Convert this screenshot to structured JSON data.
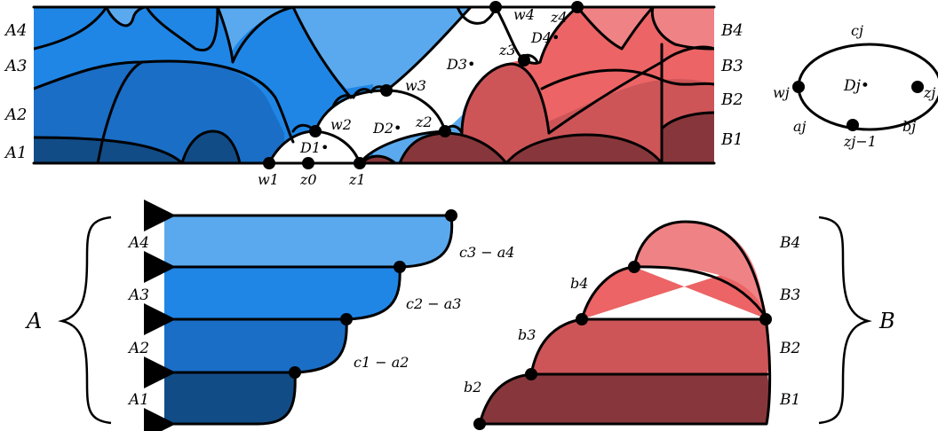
{
  "colors": {
    "A1": "#124c86",
    "A2": "#1a6ec6",
    "A3": "#1f86e6",
    "A4": "#5aa9ee",
    "B1": "#87373b",
    "B2": "#cd5558",
    "B3": "#ec6465",
    "B4": "#ef8285"
  },
  "strip": {
    "left_labels": [
      "A4",
      "A3",
      "A2",
      "A1"
    ],
    "right_labels": [
      "B4",
      "B3",
      "B2",
      "B1"
    ],
    "point_labels": {
      "w1": "w1",
      "z0": "z0",
      "z1": "z1",
      "w2": "w2",
      "z2": "z2",
      "w3": "w3",
      "z3": "z3",
      "w4": "w4",
      "z4": "z4"
    },
    "disk_labels": [
      "D1•",
      "D2•",
      "D3•",
      "D4•"
    ]
  },
  "disk": {
    "top": "cj",
    "center": "Dj•",
    "left_pt": "wj",
    "right_pt": "zj",
    "left_arc": "aj",
    "bottom_pt": "zj−1",
    "right_arc": "bj"
  },
  "bottom": {
    "A_labels": [
      "A4",
      "A3",
      "A2",
      "A1"
    ],
    "A_brace": "A",
    "A_arrow_labels": [
      "c3 − a4",
      "c2 − a3",
      "c1 − a2"
    ],
    "B_labels": [
      "B4",
      "B3",
      "B2",
      "B1"
    ],
    "B_brace": "B",
    "B_side_labels": [
      "b4",
      "b3",
      "b2"
    ]
  }
}
